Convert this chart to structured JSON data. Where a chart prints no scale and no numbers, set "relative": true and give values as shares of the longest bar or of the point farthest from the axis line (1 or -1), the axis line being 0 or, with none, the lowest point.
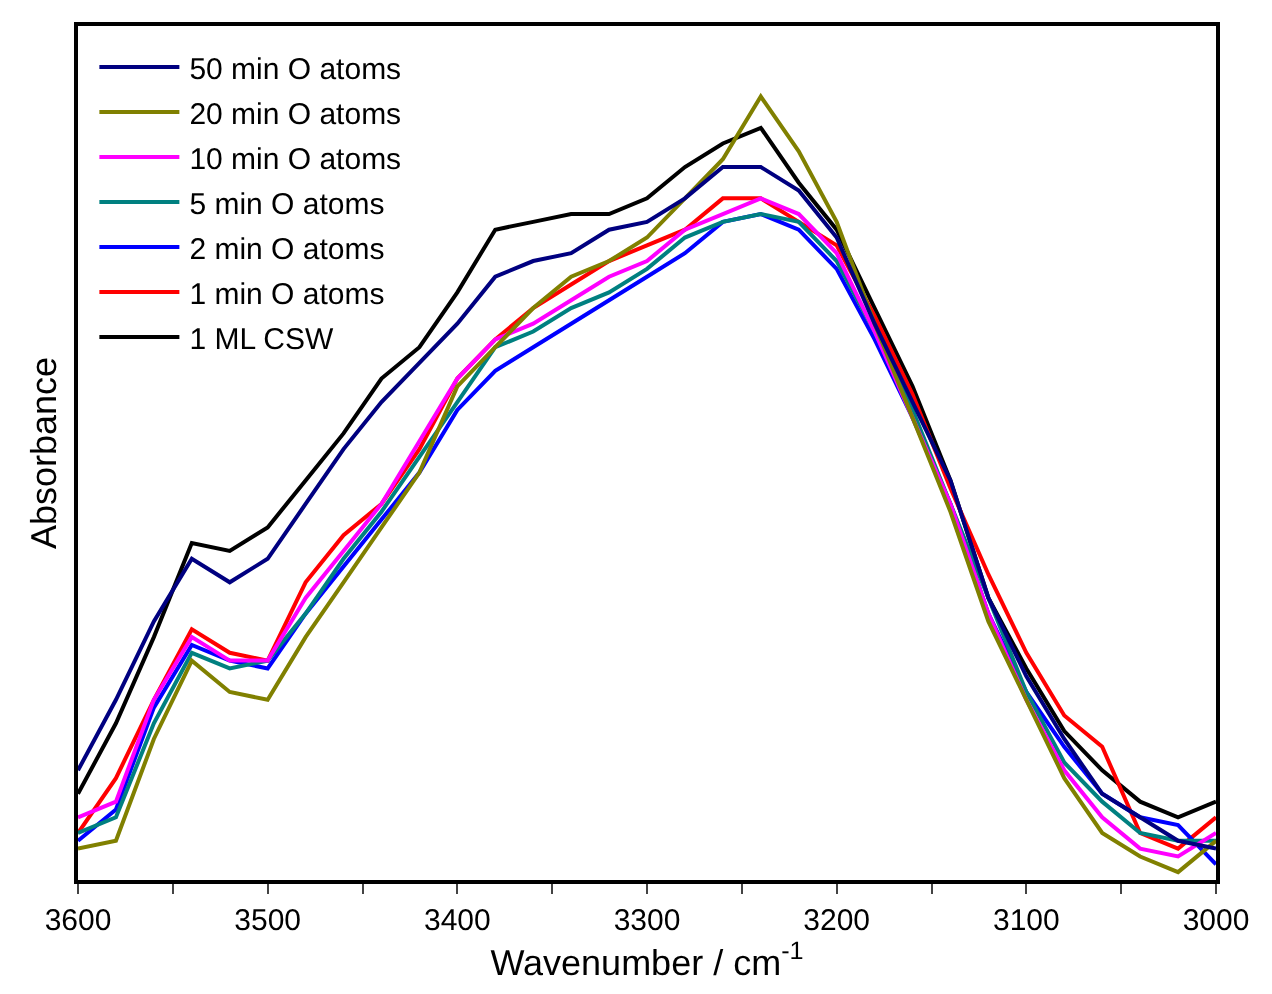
{
  "chart_data": {
    "type": "line",
    "relative": true,
    "xlabel": "Wavenumber / cm$^{-1}$",
    "ylabel": "Absorbance",
    "x": [
      3600,
      3580,
      3560,
      3540,
      3520,
      3500,
      3480,
      3460,
      3440,
      3420,
      3400,
      3380,
      3360,
      3340,
      3320,
      3300,
      3280,
      3260,
      3240,
      3220,
      3200,
      3180,
      3160,
      3140,
      3120,
      3100,
      3080,
      3060,
      3040,
      3020,
      3000
    ],
    "xlim": [
      3600,
      3000
    ],
    "xticks": [
      3600,
      {
        "value": 3550,
        "label": null
      },
      3500,
      {
        "value": 3450,
        "label": null
      },
      3400,
      {
        "value": 3350,
        "label": null
      },
      3300,
      {
        "value": 3250,
        "label": null
      },
      3200,
      {
        "value": 3150,
        "label": null
      },
      3100,
      {
        "value": 3050,
        "label": null
      },
      3000
    ],
    "legend": "top left",
    "marker": "none",
    "line_style": "solid",
    "series": [
      {
        "name": "50 min O atoms",
        "color": "#000080",
        "values": [
          0.14,
          0.23,
          0.33,
          0.41,
          0.38,
          0.41,
          0.48,
          0.55,
          0.61,
          0.66,
          0.71,
          0.77,
          0.79,
          0.8,
          0.83,
          0.84,
          0.87,
          0.91,
          0.91,
          0.88,
          0.82,
          0.71,
          0.61,
          0.51,
          0.36,
          0.26,
          0.18,
          0.11,
          0.08,
          0.05,
          0.04
        ]
      },
      {
        "name": "20 min O atoms",
        "color": "#808000",
        "values": [
          0.04,
          0.05,
          0.18,
          0.28,
          0.24,
          0.23,
          0.31,
          0.38,
          0.45,
          0.52,
          0.63,
          0.68,
          0.73,
          0.77,
          0.79,
          0.82,
          0.87,
          0.92,
          1.0,
          0.93,
          0.84,
          0.71,
          0.59,
          0.47,
          0.33,
          0.23,
          0.13,
          0.06,
          0.03,
          0.01,
          0.05
        ]
      },
      {
        "name": "10 min O atoms",
        "color": "#ff00ff",
        "values": [
          0.08,
          0.1,
          0.23,
          0.31,
          0.28,
          0.28,
          0.36,
          0.42,
          0.48,
          0.56,
          0.64,
          0.69,
          0.71,
          0.74,
          0.77,
          0.79,
          0.83,
          0.85,
          0.87,
          0.85,
          0.8,
          0.7,
          0.59,
          0.48,
          0.34,
          0.23,
          0.14,
          0.08,
          0.04,
          0.03,
          0.06
        ]
      },
      {
        "name": "5 min O atoms",
        "color": "#008080",
        "values": [
          0.06,
          0.08,
          0.2,
          0.29,
          0.27,
          0.28,
          0.34,
          0.41,
          0.47,
          0.54,
          0.61,
          0.68,
          0.7,
          0.73,
          0.75,
          0.78,
          0.82,
          0.84,
          0.85,
          0.84,
          0.79,
          0.7,
          0.6,
          0.48,
          0.36,
          0.24,
          0.15,
          0.1,
          0.06,
          0.05,
          0.05
        ]
      },
      {
        "name": "2 min O atoms",
        "color": "#0000ff",
        "values": [
          0.05,
          0.09,
          0.22,
          0.3,
          0.28,
          0.27,
          0.34,
          0.4,
          0.46,
          0.52,
          0.6,
          0.65,
          0.68,
          0.71,
          0.74,
          0.77,
          0.8,
          0.84,
          0.85,
          0.83,
          0.78,
          0.69,
          0.59,
          0.48,
          0.34,
          0.24,
          0.17,
          0.11,
          0.08,
          0.07,
          0.02
        ]
      },
      {
        "name": "1 min O atoms",
        "color": "#ff0000",
        "values": [
          0.06,
          0.13,
          0.23,
          0.32,
          0.29,
          0.28,
          0.38,
          0.44,
          0.48,
          0.55,
          0.64,
          0.69,
          0.73,
          0.76,
          0.79,
          0.81,
          0.83,
          0.87,
          0.87,
          0.84,
          0.81,
          0.72,
          0.62,
          0.5,
          0.39,
          0.29,
          0.21,
          0.17,
          0.06,
          0.04,
          0.08
        ]
      },
      {
        "name": "1 ML CSW",
        "color": "#000000",
        "values": [
          0.11,
          0.2,
          0.31,
          0.43,
          0.42,
          0.45,
          0.51,
          0.57,
          0.64,
          0.68,
          0.75,
          0.83,
          0.84,
          0.85,
          0.85,
          0.87,
          0.91,
          0.94,
          0.96,
          0.89,
          0.83,
          0.73,
          0.63,
          0.51,
          0.36,
          0.27,
          0.19,
          0.14,
          0.1,
          0.08,
          0.1
        ]
      }
    ]
  }
}
